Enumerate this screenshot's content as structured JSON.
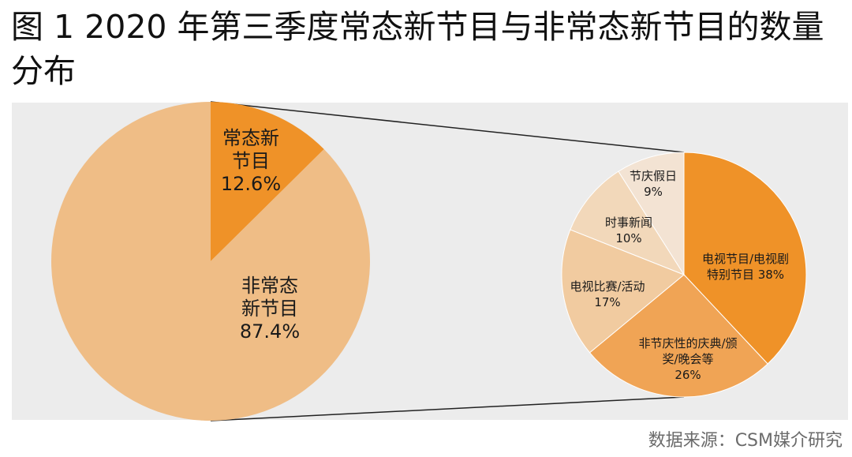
{
  "title": "图 1   2020 年第三季度常态新节目与非常态新节目的数量分布",
  "source": "数据来源：CSM媒介研究",
  "colors": {
    "panel_bg": "#ececec",
    "dark_orange": "#ef9228",
    "light_orange": "#efbd86",
    "medium_orange": "#f0a455",
    "pale_orange": "#f1cba0",
    "paler_orange": "#f2d8ba",
    "palest_orange": "#f3e3d3",
    "connector": "#222222"
  },
  "chart_data": [
    {
      "type": "pie",
      "slices": [
        {
          "label_lines": [
            "常态新",
            "节目"
          ],
          "pct_label": "12.6%",
          "value": 12.6,
          "color": "#ef9228"
        },
        {
          "label_lines": [
            "非常态",
            "新节目"
          ],
          "pct_label": "87.4%",
          "value": 87.4,
          "color": "#efbd86"
        }
      ]
    },
    {
      "type": "pie",
      "slices": [
        {
          "label_lines": [
            "电视节目/电视剧",
            "特别节目 38%"
          ],
          "pct_label": "",
          "value": 38,
          "color": "#ef9228"
        },
        {
          "label_lines": [
            "非节庆性的庆典/颁",
            "奖/晚会等"
          ],
          "pct_label": "26%",
          "value": 26,
          "color": "#f0a455"
        },
        {
          "label_lines": [
            "电视比赛/活动"
          ],
          "pct_label": "17%",
          "value": 17,
          "color": "#f1cba0"
        },
        {
          "label_lines": [
            "时事新闻"
          ],
          "pct_label": "10%",
          "value": 10,
          "color": "#f2d8ba"
        },
        {
          "label_lines": [
            "节庆假日"
          ],
          "pct_label": "9%",
          "value": 9,
          "color": "#f3e3d3"
        }
      ]
    }
  ]
}
